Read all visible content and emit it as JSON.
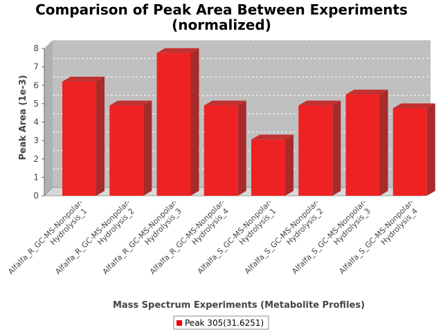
{
  "chart_data": {
    "type": "bar",
    "title_line1": "Comparison of Peak Area Between Experiments",
    "title_line2": "(normalized)",
    "xlabel": "Mass Spectrum Experiments (Metabolite Profiles)",
    "ylabel": "Peak Area (1e-3)",
    "ylim": [
      0,
      8
    ],
    "yticks": [
      "0",
      "1",
      "2",
      "3",
      "4",
      "5",
      "6",
      "7",
      "8"
    ],
    "categories": [
      [
        "Alfalfa_R_GC-MS-Nonpolar-",
        "Hydrolysis_1"
      ],
      [
        "Alfalfa_R_GC-MS-Nonpolar-",
        "Hydrolysis_2"
      ],
      [
        "Alfalfa_R_GC-MS-Nonpolar-",
        "Hydrolysis_3"
      ],
      [
        "Alfalfa_R_GC-MS-Nonpolar-",
        "Hydrolysis_4"
      ],
      [
        "Alfalfa_S_GC-MS-Nonpolar-",
        "Hydrolysis_1"
      ],
      [
        "Alfalfa_S_GC-MS-Nonpolar-",
        "Hydrolysis_2"
      ],
      [
        "Alfalfa_S_GC-MS-Nonpolar-",
        "Hydrolysis_3"
      ],
      [
        "Alfalfa_S_GC-MS-Nonpolar-",
        "Hydrolysis_4"
      ]
    ],
    "series": [
      {
        "name": "Peak 305(31.6251)",
        "color": "#ee2222",
        "values": [
          6.2,
          4.9,
          7.75,
          4.9,
          3.05,
          4.9,
          5.5,
          4.75
        ]
      }
    ],
    "grid": true,
    "legend_position": "bottom-center",
    "plot_background": "#c0c0c0"
  }
}
